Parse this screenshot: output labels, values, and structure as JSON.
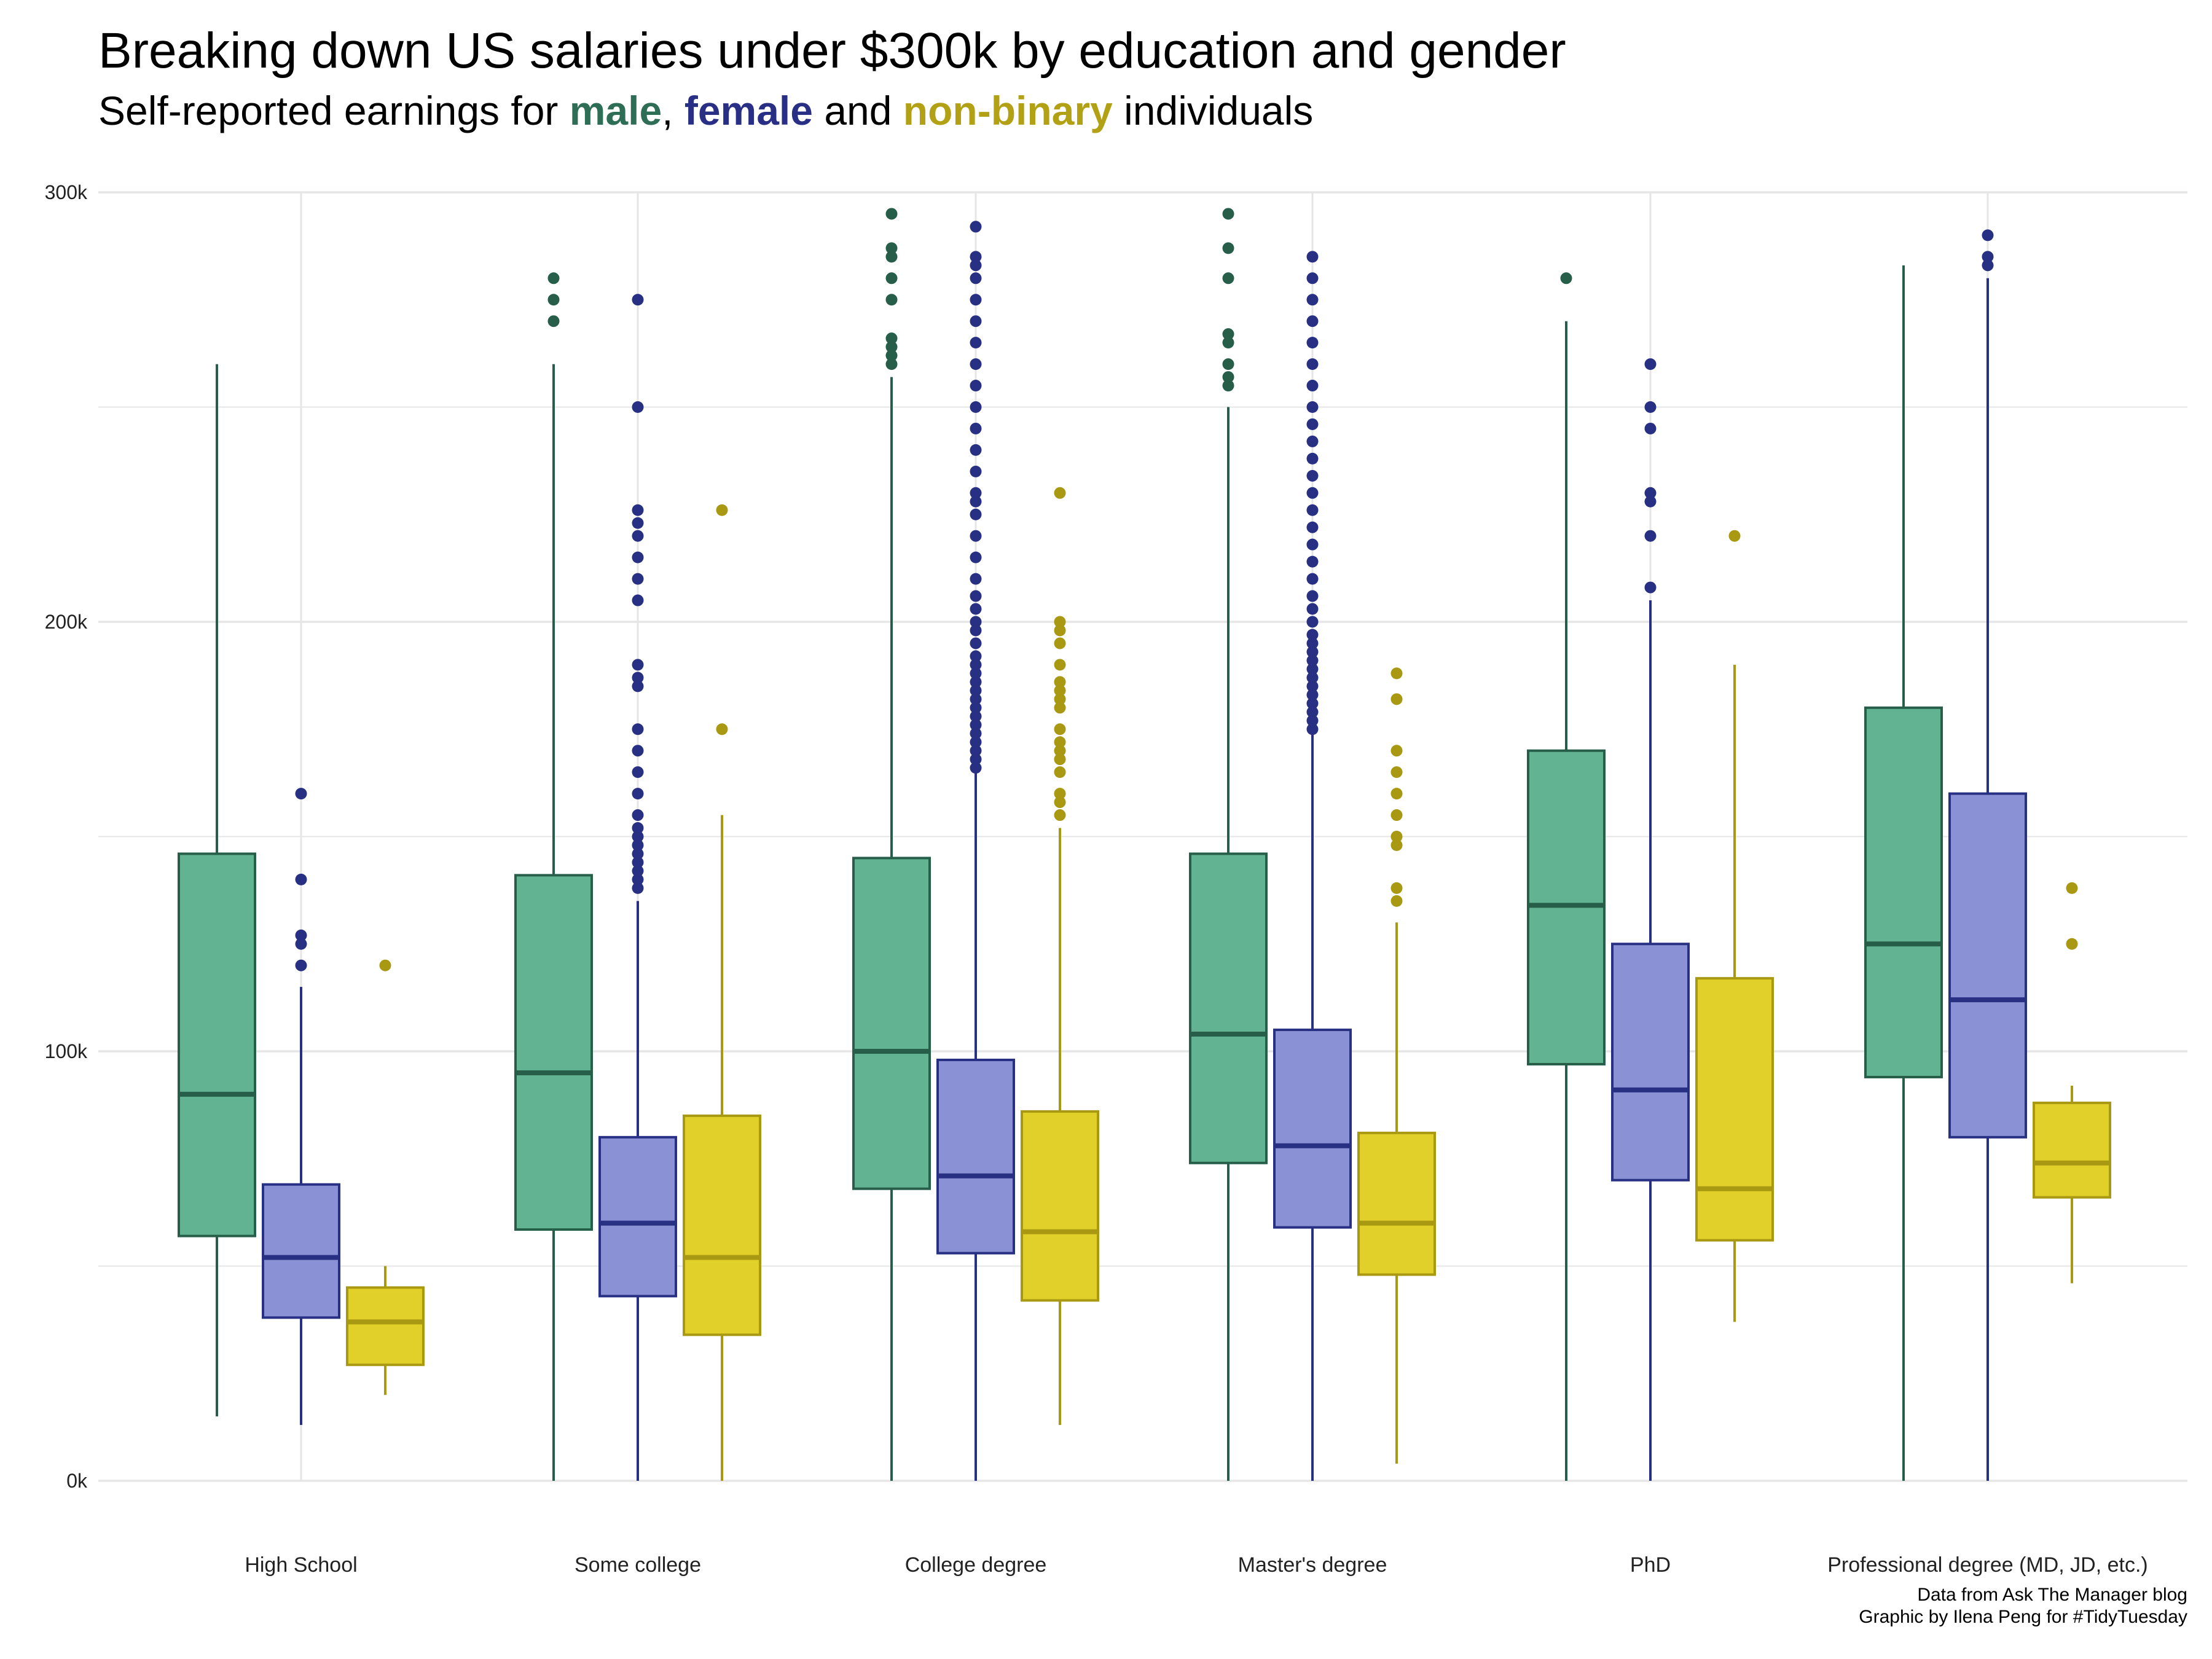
{
  "title": "Breaking down US salaries under $300k by education and gender",
  "subtitle": {
    "prefix": "Self-reported earnings for ",
    "male": "male",
    "sep1": ", ",
    "female": "female",
    "sep2": " and ",
    "nonbinary": "non-binary",
    "suffix": " individuals"
  },
  "caption": {
    "line1": "Data from Ask The Manager blog",
    "line2": "Graphic by Ilena Peng for #TidyTuesday"
  },
  "colors": {
    "male_fill": "#62b391",
    "male_line": "#265e4a",
    "female_fill": "#8a91d4",
    "female_line": "#283084",
    "nonbinary_fill": "#e2d02a",
    "nonbinary_line": "#a89812",
    "male_text": "#2f6e56",
    "female_text": "#2a2f86",
    "nonbinary_text": "#b3a115",
    "grid": "#e6e6e6"
  },
  "chart_data": {
    "type": "boxplot",
    "categories": [
      "High School",
      "Some college",
      "College degree",
      "Master's degree",
      "PhD",
      "Professional degree (MD, JD, etc.)"
    ],
    "ylim": [
      0,
      300000
    ],
    "yticks": [
      0,
      100000,
      200000,
      300000
    ],
    "ytick_labels": [
      "0k",
      "100k",
      "200k",
      "300k"
    ],
    "grid": true,
    "series": [
      {
        "name": "male",
        "boxes": [
          {
            "whisker_low": 15000,
            "q1": 57000,
            "median": 90000,
            "q3": 146000,
            "whisker_high": 260000,
            "outliers": []
          },
          {
            "whisker_low": 0,
            "q1": 58500,
            "median": 95000,
            "q3": 141000,
            "whisker_high": 260000,
            "outliers": [
              270000,
              275000,
              280000
            ]
          },
          {
            "whisker_low": 0,
            "q1": 68000,
            "median": 100000,
            "q3": 145000,
            "whisker_high": 257000,
            "outliers": [
              260000,
              262000,
              264000,
              266000,
              275000,
              280000,
              285000,
              287000,
              295000
            ]
          },
          {
            "whisker_low": 0,
            "q1": 74000,
            "median": 104000,
            "q3": 146000,
            "whisker_high": 250000,
            "outliers": [
              255000,
              257000,
              260000,
              265000,
              267000,
              280000,
              287000,
              295000
            ]
          },
          {
            "whisker_low": 0,
            "q1": 97000,
            "median": 134000,
            "q3": 170000,
            "whisker_high": 270000,
            "outliers": [
              280000
            ]
          },
          {
            "whisker_low": 0,
            "q1": 94000,
            "median": 125000,
            "q3": 180000,
            "whisker_high": 283000,
            "outliers": []
          }
        ]
      },
      {
        "name": "female",
        "boxes": [
          {
            "whisker_low": 13000,
            "q1": 38000,
            "median": 52000,
            "q3": 69000,
            "whisker_high": 115000,
            "outliers": [
              120000,
              125000,
              127000,
              140000,
              160000
            ]
          },
          {
            "whisker_low": 0,
            "q1": 43000,
            "median": 60000,
            "q3": 80000,
            "whisker_high": 135000,
            "outliers": [
              138000,
              140000,
              142000,
              144000,
              146000,
              148000,
              150000,
              152000,
              155000,
              160000,
              165000,
              170000,
              175000,
              185000,
              187000,
              190000,
              205000,
              210000,
              215000,
              220000,
              223000,
              226000,
              250000,
              275000
            ]
          },
          {
            "whisker_low": 0,
            "q1": 53000,
            "median": 71000,
            "q3": 98000,
            "whisker_high": 165000,
            "outliers": [
              166000,
              168000,
              170000,
              172000,
              174000,
              176000,
              178000,
              180000,
              182000,
              184000,
              186000,
              188000,
              190000,
              192000,
              195000,
              198000,
              200000,
              203000,
              206000,
              210000,
              215000,
              220000,
              225000,
              228000,
              230000,
              235000,
              240000,
              245000,
              250000,
              255000,
              260000,
              265000,
              270000,
              275000,
              280000,
              283000,
              285000,
              292000
            ]
          },
          {
            "whisker_low": 0,
            "q1": 59000,
            "median": 78000,
            "q3": 105000,
            "whisker_high": 174000,
            "outliers": [
              175000,
              177000,
              179000,
              181000,
              183000,
              185000,
              187000,
              189000,
              191000,
              193000,
              195000,
              197000,
              200000,
              203000,
              206000,
              210000,
              214000,
              218000,
              222000,
              226000,
              230000,
              234000,
              238000,
              242000,
              246000,
              250000,
              255000,
              260000,
              265000,
              270000,
              275000,
              280000,
              285000
            ]
          },
          {
            "whisker_low": 0,
            "q1": 70000,
            "median": 91000,
            "q3": 125000,
            "whisker_high": 205000,
            "outliers": [
              208000,
              220000,
              228000,
              230000,
              245000,
              250000,
              260000
            ]
          },
          {
            "whisker_low": 0,
            "q1": 80000,
            "median": 112000,
            "q3": 160000,
            "whisker_high": 280000,
            "outliers": [
              283000,
              285000,
              290000
            ]
          }
        ]
      },
      {
        "name": "non-binary",
        "boxes": [
          {
            "whisker_low": 20000,
            "q1": 27000,
            "median": 37000,
            "q3": 45000,
            "whisker_high": 50000,
            "outliers": [
              120000
            ]
          },
          {
            "whisker_low": 0,
            "q1": 34000,
            "median": 52000,
            "q3": 85000,
            "whisker_high": 155000,
            "outliers": [
              175000,
              226000
            ]
          },
          {
            "whisker_low": 13000,
            "q1": 42000,
            "median": 58000,
            "q3": 86000,
            "whisker_high": 152000,
            "outliers": [
              155000,
              158000,
              160000,
              165000,
              168000,
              170000,
              172000,
              175000,
              180000,
              182000,
              184000,
              186000,
              190000,
              195000,
              198000,
              200000,
              230000
            ]
          },
          {
            "whisker_low": 4000,
            "q1": 48000,
            "median": 60000,
            "q3": 81000,
            "whisker_high": 130000,
            "outliers": [
              135000,
              138000,
              148000,
              150000,
              155000,
              160000,
              165000,
              170000,
              182000,
              188000
            ]
          },
          {
            "whisker_low": 37000,
            "q1": 56000,
            "median": 68000,
            "q3": 117000,
            "whisker_high": 190000,
            "outliers": [
              220000
            ]
          },
          {
            "whisker_low": 46000,
            "q1": 66000,
            "median": 74000,
            "q3": 88000,
            "whisker_high": 92000,
            "outliers": [
              125000,
              138000
            ]
          }
        ]
      }
    ]
  }
}
